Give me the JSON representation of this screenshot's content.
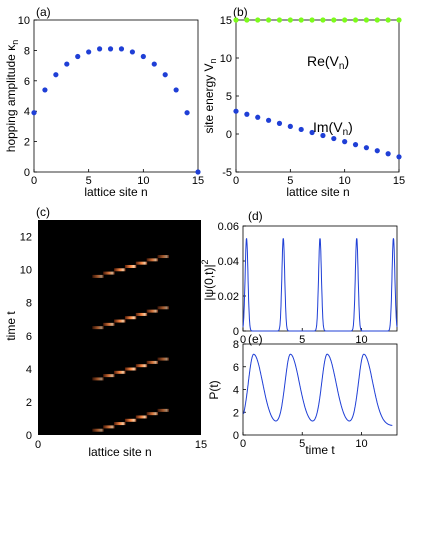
{
  "chart_data": [
    {
      "panel_label": "(a)",
      "type": "scatter",
      "xlabel": "lattice site n",
      "ylabel": "hopping amplitude κ",
      "ylabel_sub": "n",
      "xlim": [
        0,
        15
      ],
      "ylim": [
        0,
        10
      ],
      "xticks": [
        0,
        5,
        10,
        15
      ],
      "yticks": [
        0,
        2,
        4,
        6,
        8,
        10
      ],
      "color": "#1f3fd6",
      "x": [
        0,
        1,
        2,
        3,
        4,
        5,
        6,
        7,
        8,
        9,
        10,
        11,
        12,
        13,
        14,
        15
      ],
      "y": [
        3.9,
        5.4,
        6.4,
        7.1,
        7.6,
        7.9,
        8.1,
        8.1,
        8.1,
        7.9,
        7.6,
        7.1,
        6.4,
        5.4,
        3.9,
        0.0
      ]
    },
    {
      "panel_label": "(b)",
      "type": "scatter",
      "xlabel": "lattice site n",
      "ylabel": "site energy  V",
      "ylabel_sub": "n",
      "xlim": [
        0,
        15
      ],
      "ylim": [
        -5,
        15
      ],
      "xticks": [
        0,
        5,
        10,
        15
      ],
      "yticks": [
        -5,
        0,
        5,
        10,
        15
      ],
      "series": [
        {
          "name": "Re(V",
          "name_sub": "n",
          "name_end": ")",
          "color": "#7cfc1a",
          "x": [
            0,
            1,
            2,
            3,
            4,
            5,
            6,
            7,
            8,
            9,
            10,
            11,
            12,
            13,
            14,
            15
          ],
          "y": [
            15,
            15,
            15,
            15,
            15,
            15,
            15,
            15,
            15,
            15,
            15,
            15,
            15,
            15,
            15,
            15
          ]
        },
        {
          "name": "Im(V",
          "name_sub": "n",
          "name_end": ")",
          "color": "#1f3fd6",
          "x": [
            0,
            1,
            2,
            3,
            4,
            5,
            6,
            7,
            8,
            9,
            10,
            11,
            12,
            13,
            14,
            15
          ],
          "y": [
            3.0,
            2.6,
            2.2,
            1.8,
            1.4,
            1.0,
            0.6,
            0.2,
            -0.2,
            -0.6,
            -1.0,
            -1.4,
            -1.8,
            -2.2,
            -2.6,
            -3.0
          ]
        }
      ]
    },
    {
      "panel_label": "(c)",
      "type": "heatmap",
      "xlabel": "lattice site n",
      "ylabel": "time  t",
      "xlim": [
        0,
        15
      ],
      "ylim": [
        0,
        13
      ],
      "xticks": [
        0,
        15
      ],
      "yticks": [
        0,
        2,
        4,
        6,
        8,
        10,
        12
      ],
      "background": "#000000",
      "pulses": [
        {
          "t_start": 0.2,
          "t_end": 1.6
        },
        {
          "t_start": 3.3,
          "t_end": 4.7
        },
        {
          "t_start": 6.4,
          "t_end": 7.8
        },
        {
          "t_start": 9.5,
          "t_end": 10.9
        }
      ],
      "n_range": [
        5,
        12
      ]
    },
    {
      "panel_label": "(d)",
      "type": "line",
      "ylabel": "|ψ(0,t)|",
      "ylabel_sup": "2",
      "xlim": [
        0,
        13
      ],
      "ylim": [
        0,
        0.06
      ],
      "xticks": [
        0,
        5,
        10
      ],
      "yticks": [
        0,
        0.02,
        0.04,
        0.06
      ],
      "color": "#1f3fd6",
      "peak_times": [
        0.3,
        3.4,
        6.5,
        9.6,
        12.7
      ],
      "peak_value": 0.053
    },
    {
      "panel_label": "(e)",
      "type": "line",
      "xlabel": "time  t",
      "ylabel": "P(t)",
      "xlim": [
        0,
        13
      ],
      "ylim": [
        0,
        8
      ],
      "xticks": [
        0,
        5,
        10
      ],
      "yticks": [
        0,
        2,
        4,
        6,
        8
      ],
      "color": "#1f3fd6",
      "peak_times": [
        0.9,
        4.0,
        7.1,
        10.2
      ],
      "peak_value": 7.1,
      "min_value": 0.8
    }
  ]
}
